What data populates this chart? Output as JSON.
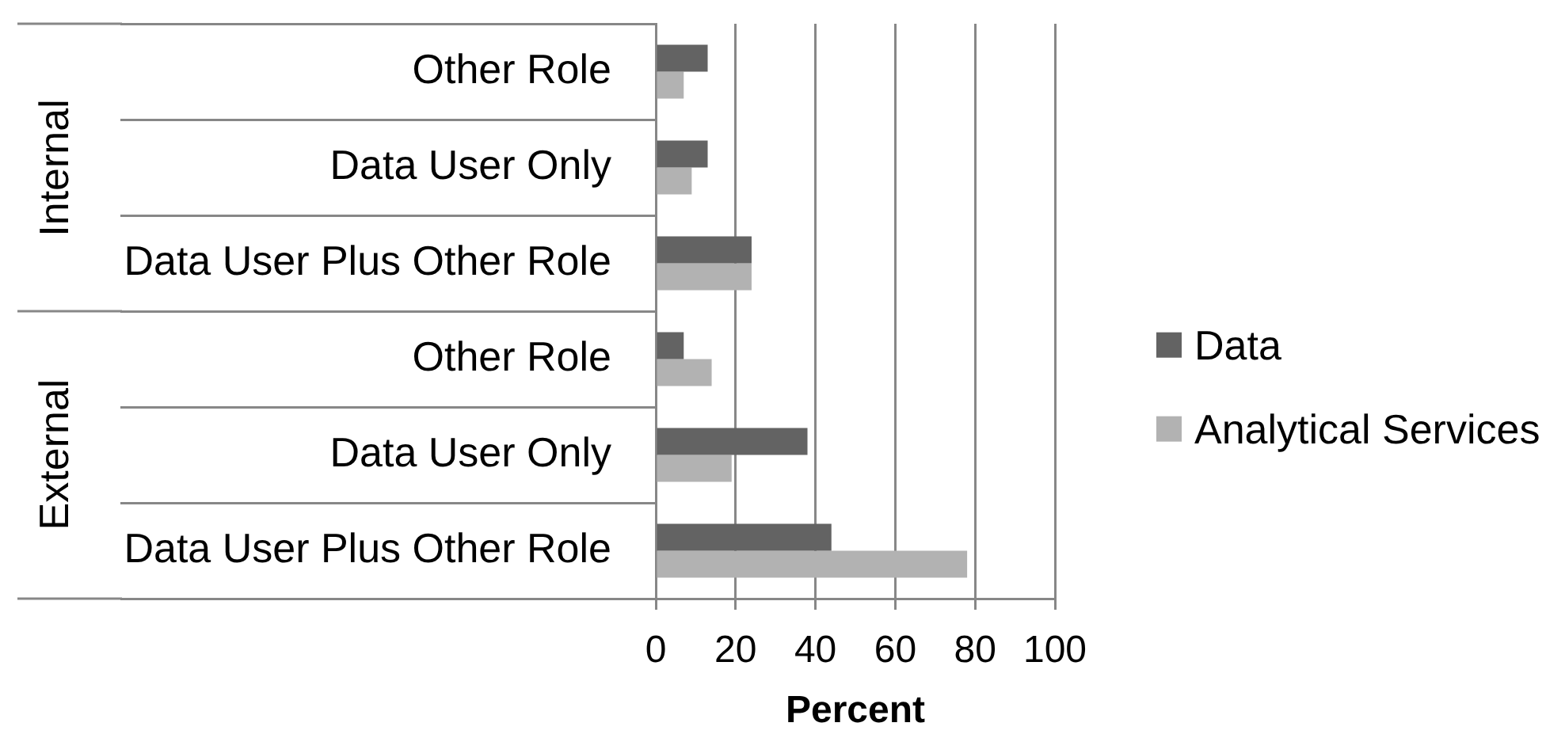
{
  "chart_data": {
    "type": "bar",
    "orientation": "horizontal",
    "categories": [
      "Other Role",
      "Data User Only",
      "Data User Plus Other Role",
      "Other Role",
      "Data User Only",
      "Data User Plus Other Role"
    ],
    "series": [
      {
        "name": "Data",
        "color": "#636363",
        "values": [
          13,
          13,
          24,
          7,
          38,
          44
        ]
      },
      {
        "name": "Analytical Services",
        "color": "#b2b2b2",
        "values": [
          7,
          9,
          24,
          14,
          19,
          78
        ]
      }
    ],
    "xlabel": "Percent",
    "xlim": [
      0,
      100
    ],
    "xticks": [
      0,
      20,
      40,
      60,
      80,
      100
    ],
    "grid": "x",
    "legend": "right",
    "annotations": [
      "Internal",
      "External"
    ]
  }
}
